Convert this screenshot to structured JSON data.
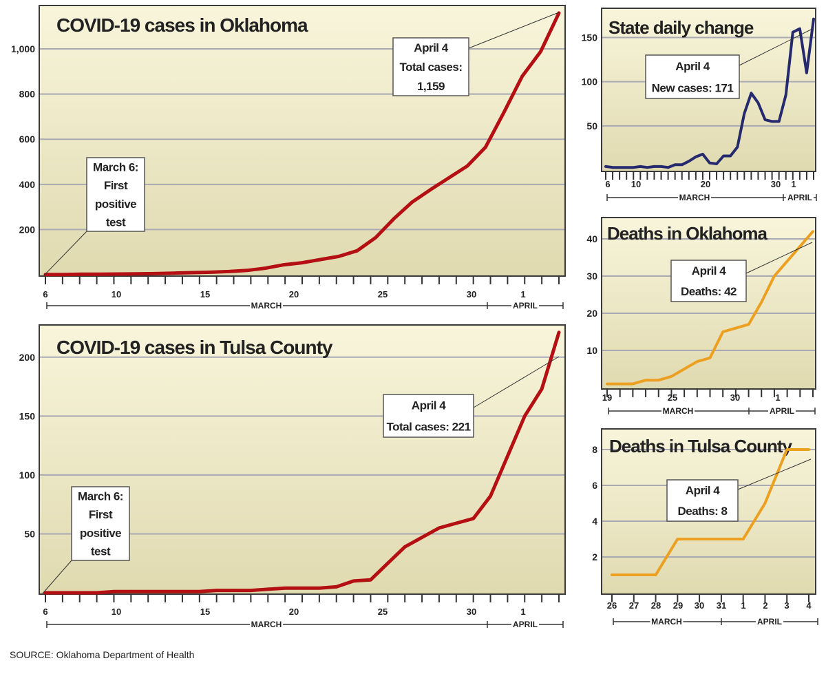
{
  "source": "SOURCE: Oklahoma Department of Health",
  "colors": {
    "red_line": "#b40f12",
    "blue_line": "#25296e",
    "orange_line": "#eba021",
    "bg_top": "#f7f4d8",
    "bg_bottom": "#e2ddb4"
  },
  "chart_data": [
    {
      "id": "ok-cases",
      "type": "line",
      "title": "COVID-19 cases in Oklahoma",
      "x_start_label": "March 6",
      "x_tick_labels": [
        "6",
        "10",
        "15",
        "20",
        "25",
        "30",
        "1"
      ],
      "months": [
        "MARCH",
        "APRIL"
      ],
      "y_tick_labels": [
        "200",
        "400",
        "600",
        "800",
        "1,000"
      ],
      "ylim": [
        0,
        1180
      ],
      "series": [
        {
          "values": [
            1,
            1,
            2,
            2,
            3,
            4,
            5,
            7,
            9,
            11,
            14,
            19,
            29,
            44,
            53,
            67,
            81,
            106,
            164,
            248,
            322,
            377,
            429,
            481,
            565,
            719,
            879,
            988,
            1159
          ]
        }
      ],
      "annotations": [
        {
          "lines": [
            "April 4",
            "Total cases:",
            "1,159"
          ]
        },
        {
          "lines": [
            "March 6:",
            "First",
            "positive",
            "test"
          ]
        }
      ]
    },
    {
      "id": "tulsa-cases",
      "type": "line",
      "title": "COVID-19 cases in Tulsa County",
      "x_start_label": "March 6",
      "x_tick_labels": [
        "6",
        "10",
        "15",
        "20",
        "25",
        "30",
        "1"
      ],
      "months": [
        "MARCH",
        "APRIL"
      ],
      "y_tick_labels": [
        "50",
        "100",
        "150",
        "200"
      ],
      "ylim": [
        0,
        225
      ],
      "series": [
        {
          "values": [
            0,
            0,
            0,
            0,
            1,
            1,
            1,
            1,
            1,
            1,
            2,
            2,
            2,
            3,
            4,
            4,
            4,
            5,
            10,
            11,
            25,
            39,
            47,
            55,
            59,
            63,
            82,
            116,
            150,
            173,
            221
          ]
        }
      ],
      "annotations": [
        {
          "lines": [
            "April 4",
            "Total cases: 221"
          ]
        },
        {
          "lines": [
            "March 6:",
            "First",
            "positive",
            "test"
          ]
        }
      ]
    },
    {
      "id": "daily-change",
      "type": "line",
      "title": "State daily change",
      "x_tick_labels": [
        "6",
        "10",
        "20",
        "30",
        "1"
      ],
      "months": [
        "MARCH",
        "APRIL"
      ],
      "y_tick_labels": [
        "50",
        "100",
        "150"
      ],
      "ylim": [
        0,
        180
      ],
      "series": [
        {
          "values": [
            4,
            3,
            3,
            3,
            3,
            4,
            3,
            4,
            4,
            3,
            6,
            6,
            10,
            15,
            18,
            8,
            7,
            16,
            16,
            26,
            64,
            87,
            76,
            57,
            55,
            55,
            85,
            156,
            160,
            110,
            171
          ]
        }
      ],
      "annotations": [
        {
          "lines": [
            "April 4",
            "New cases: 171"
          ]
        }
      ]
    },
    {
      "id": "ok-deaths",
      "type": "line",
      "title": "Deaths in Oklahoma",
      "x_tick_labels": [
        "19",
        "25",
        "30",
        "1"
      ],
      "months": [
        "MARCH",
        "APRIL"
      ],
      "y_tick_labels": [
        "10",
        "20",
        "30",
        "40"
      ],
      "ylim": [
        0,
        45
      ],
      "series": [
        {
          "values": [
            1,
            1,
            1,
            2,
            2,
            3,
            5,
            7,
            8,
            15,
            16,
            17,
            23,
            30,
            34,
            38,
            42
          ]
        }
      ],
      "annotations": [
        {
          "lines": [
            "April 4",
            "Deaths: 42"
          ]
        }
      ]
    },
    {
      "id": "tulsa-deaths",
      "type": "line",
      "title": "Deaths in Tulsa County",
      "x_tick_labels": [
        "26",
        "27",
        "28",
        "29",
        "30",
        "31",
        "1",
        "2",
        "3",
        "4"
      ],
      "months": [
        "MARCH",
        "APRIL"
      ],
      "y_tick_labels": [
        "2",
        "4",
        "6",
        "8"
      ],
      "ylim": [
        0,
        9
      ],
      "series": [
        {
          "values": [
            1,
            1,
            1,
            3,
            3,
            3,
            3,
            5,
            8,
            8
          ]
        }
      ],
      "annotations": [
        {
          "lines": [
            "April 4",
            "Deaths: 8"
          ]
        }
      ]
    }
  ]
}
